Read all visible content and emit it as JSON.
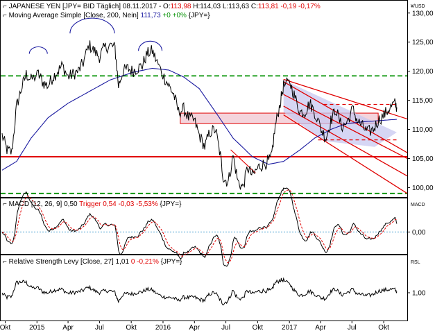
{
  "colors": {
    "price": "#000000",
    "ma": "#1a1aa0",
    "trend": "#e00000",
    "support": "#009000",
    "channel_fill": "#c8c8f0",
    "zone_fill": "#f4d4dc",
    "trigger": "#e00000",
    "zero_line": "#4aa0d0",
    "header_red": "#e00000",
    "header_blue": "#1a1aa0",
    "header_green": "#009000"
  },
  "panels": {
    "price": {
      "title": "JAPANESE YEN [JPY= BID Täglich] 08.11.2017",
      "ohlc": [
        {
          "text": " - O:",
          "color": "#000000"
        },
        {
          "text": "113,98",
          "color": "#e00000"
        },
        {
          "text": " H:",
          "color": "#000000"
        },
        {
          "text": "114,03",
          "color": "#000000"
        },
        {
          "text": " L:",
          "color": "#000000"
        },
        {
          "text": "113,63",
          "color": "#000000"
        },
        {
          "text": " C:",
          "color": "#000000"
        },
        {
          "text": "113,81 -0,19 -0,17%",
          "color": "#e00000"
        }
      ],
      "unit": "¥/USD",
      "ma_legend": [
        {
          "text": "Moving Average Simple [Close, 200, Nein] ",
          "color": "#000000"
        },
        {
          "text": "111,73",
          "color": "#1a1aa0"
        },
        {
          "text": " +0 +0%",
          "color": "#009000"
        },
        {
          "text": " {JPY=}",
          "color": "#000000"
        }
      ]
    },
    "macd": {
      "legend": [
        {
          "text": "MACD [12, 26, 9] 0,50 ",
          "color": "#000000"
        },
        {
          "text": "Trigger 0,54 -0,03 -5,53%",
          "color": "#e00000"
        },
        {
          "text": " {JPY=}",
          "color": "#000000"
        }
      ],
      "unit": "MACD"
    },
    "rsl": {
      "legend": [
        {
          "text": "Relative Strength Levy [Close, 27] 1,01 ",
          "color": "#000000"
        },
        {
          "text": "0 -0,21%",
          "color": "#e00000"
        },
        {
          "text": " {JPY=}",
          "color": "#000000"
        }
      ],
      "unit": "RSL"
    }
  },
  "chart_data": [
    {
      "type": "line",
      "panel": "price",
      "x_labels": [
        "Okt",
        "2015",
        "Apr",
        "Jul",
        "Okt",
        "2016",
        "Apr",
        "Jul",
        "Okt",
        "2017",
        "Apr",
        "Jul",
        "Okt"
      ],
      "x_label_dates": [
        "2014-10",
        "2015-01",
        "2015-04",
        "2015-07",
        "2015-10",
        "2016-01",
        "2016-04",
        "2016-07",
        "2016-10",
        "2017-01",
        "2017-04",
        "2017-07",
        "2017-10"
      ],
      "ylim": [
        98.5,
        132
      ],
      "y_ticks": [
        100,
        105,
        110,
        115,
        120,
        125,
        130
      ],
      "y_tick_labels": [
        "100,00",
        "105,00",
        "110,00",
        "115,00",
        "120,00",
        "125,00",
        "130,00"
      ],
      "series": [
        {
          "x": [
            "2014-09-22",
            "2014-10-06",
            "2014-10-20",
            "2014-11-03",
            "2014-11-17",
            "2014-12-01",
            "2014-12-15",
            "2015-01-05",
            "2015-01-19",
            "2015-02-02",
            "2015-02-16",
            "2015-03-02",
            "2015-03-16",
            "2015-04-01",
            "2015-04-15",
            "2015-05-01",
            "2015-05-15",
            "2015-06-01",
            "2015-06-15",
            "2015-07-01",
            "2015-07-15",
            "2015-08-01",
            "2015-08-15",
            "2015-08-25",
            "2015-09-07",
            "2015-09-21",
            "2015-10-05",
            "2015-10-19",
            "2015-11-02",
            "2015-11-16",
            "2015-12-01",
            "2015-12-15",
            "2016-01-04",
            "2016-01-18",
            "2016-02-01",
            "2016-02-15",
            "2016-03-01",
            "2016-03-15",
            "2016-04-01",
            "2016-04-15",
            "2016-05-01",
            "2016-05-15",
            "2016-06-01",
            "2016-06-15",
            "2016-06-24",
            "2016-07-08",
            "2016-07-22",
            "2016-08-05",
            "2016-08-19",
            "2016-09-02",
            "2016-09-16",
            "2016-10-03",
            "2016-10-17",
            "2016-11-01",
            "2016-11-09",
            "2016-11-21",
            "2016-12-05",
            "2016-12-15",
            "2017-01-03",
            "2017-01-17",
            "2017-02-01",
            "2017-02-15",
            "2017-03-01",
            "2017-03-15",
            "2017-04-03",
            "2017-04-17",
            "2017-05-01",
            "2017-05-15",
            "2017-06-01",
            "2017-06-15",
            "2017-07-03",
            "2017-07-17",
            "2017-08-01",
            "2017-08-15",
            "2017-09-01",
            "2017-09-15",
            "2017-10-02",
            "2017-10-16",
            "2017-11-01",
            "2017-11-08"
          ],
          "values": [
            109.0,
            106.5,
            106.0,
            114.0,
            117.0,
            119.5,
            118.5,
            119.5,
            118.0,
            117.5,
            119.0,
            120.0,
            121.0,
            119.0,
            119.5,
            120.0,
            121.5,
            124.5,
            123.5,
            122.5,
            124.0,
            124.5,
            124.0,
            117.5,
            120.0,
            120.5,
            120.0,
            120.5,
            121.0,
            123.0,
            123.5,
            121.5,
            119.0,
            117.5,
            116.0,
            113.0,
            113.5,
            112.0,
            111.5,
            109.0,
            107.0,
            109.5,
            110.0,
            105.5,
            101.5,
            101.0,
            105.5,
            101.0,
            100.0,
            103.5,
            102.0,
            103.5,
            104.0,
            104.5,
            105.0,
            110.5,
            114.5,
            117.5,
            118.0,
            115.5,
            113.0,
            113.0,
            114.5,
            113.0,
            110.0,
            108.5,
            111.5,
            113.5,
            110.5,
            111.0,
            113.5,
            111.5,
            110.5,
            109.5,
            110.0,
            111.5,
            112.5,
            113.5,
            114.5,
            113.8
          ]
        },
        {
          "name": "Moving Average Simple [Close, 200, Nein]",
          "x": [
            "2014-09-22",
            "2014-11-03",
            "2014-12-15",
            "2015-02-02",
            "2015-04-01",
            "2015-06-01",
            "2015-08-01",
            "2015-10-05",
            "2015-12-01",
            "2016-01-18",
            "2016-03-01",
            "2016-04-15",
            "2016-06-01",
            "2016-07-22",
            "2016-09-16",
            "2016-11-01",
            "2016-12-15",
            "2017-02-01",
            "2017-03-15",
            "2017-05-01",
            "2017-06-15",
            "2017-08-01",
            "2017-09-15",
            "2017-11-08"
          ],
          "values": [
            103.0,
            104.5,
            108.5,
            112.0,
            114.5,
            116.5,
            118.5,
            119.8,
            120.5,
            120.2,
            119.0,
            117.0,
            113.0,
            108.5,
            105.3,
            104.0,
            104.5,
            106.5,
            108.5,
            110.0,
            111.0,
            111.3,
            111.5,
            111.73
          ]
        }
      ]
    },
    {
      "type": "line",
      "panel": "macd",
      "ylim": [
        -1.6,
        1.8
      ],
      "y_ticks": [
        0
      ],
      "y_tick_labels": [
        "0,00"
      ]
    },
    {
      "type": "line",
      "panel": "rsl",
      "ylim": [
        0.88,
        1.12
      ],
      "y_ticks": [
        1.0
      ],
      "y_tick_labels": [
        "1,00"
      ]
    }
  ]
}
